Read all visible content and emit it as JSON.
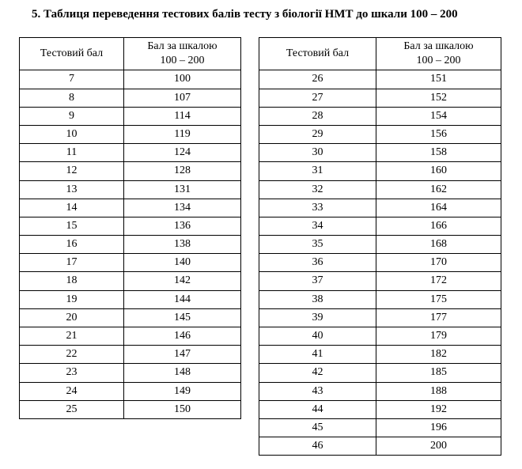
{
  "title_prefix": "5. ",
  "title_text": "Таблиця переведення тестових балів тесту з біології НМТ до шкали 100 – 200",
  "table_left": {
    "header1": "Тестовий бал",
    "header2_line1": "Бал за шкалою",
    "header2_line2": "100 – 200",
    "rows": [
      {
        "score": "7",
        "scale": "100"
      },
      {
        "score": "8",
        "scale": "107"
      },
      {
        "score": "9",
        "scale": "114"
      },
      {
        "score": "10",
        "scale": "119"
      },
      {
        "score": "11",
        "scale": "124"
      },
      {
        "score": "12",
        "scale": "128"
      },
      {
        "score": "13",
        "scale": "131"
      },
      {
        "score": "14",
        "scale": "134"
      },
      {
        "score": "15",
        "scale": "136"
      },
      {
        "score": "16",
        "scale": "138"
      },
      {
        "score": "17",
        "scale": "140"
      },
      {
        "score": "18",
        "scale": "142"
      },
      {
        "score": "19",
        "scale": "144"
      },
      {
        "score": "20",
        "scale": "145"
      },
      {
        "score": "21",
        "scale": "146"
      },
      {
        "score": "22",
        "scale": "147"
      },
      {
        "score": "23",
        "scale": "148"
      },
      {
        "score": "24",
        "scale": "149"
      },
      {
        "score": "25",
        "scale": "150"
      }
    ]
  },
  "table_right": {
    "header1": "Тестовий бал",
    "header2_line1": "Бал за шкалою",
    "header2_line2": "100 – 200",
    "rows": [
      {
        "score": "26",
        "scale": "151"
      },
      {
        "score": "27",
        "scale": "152"
      },
      {
        "score": "28",
        "scale": "154"
      },
      {
        "score": "29",
        "scale": "156"
      },
      {
        "score": "30",
        "scale": "158"
      },
      {
        "score": "31",
        "scale": "160"
      },
      {
        "score": "32",
        "scale": "162"
      },
      {
        "score": "33",
        "scale": "164"
      },
      {
        "score": "34",
        "scale": "166"
      },
      {
        "score": "35",
        "scale": "168"
      },
      {
        "score": "36",
        "scale": "170"
      },
      {
        "score": "37",
        "scale": "172"
      },
      {
        "score": "38",
        "scale": "175"
      },
      {
        "score": "39",
        "scale": "177"
      },
      {
        "score": "40",
        "scale": "179"
      },
      {
        "score": "41",
        "scale": "182"
      },
      {
        "score": "42",
        "scale": "185"
      },
      {
        "score": "43",
        "scale": "188"
      },
      {
        "score": "44",
        "scale": "192"
      },
      {
        "score": "45",
        "scale": "196"
      },
      {
        "score": "46",
        "scale": "200"
      }
    ]
  }
}
